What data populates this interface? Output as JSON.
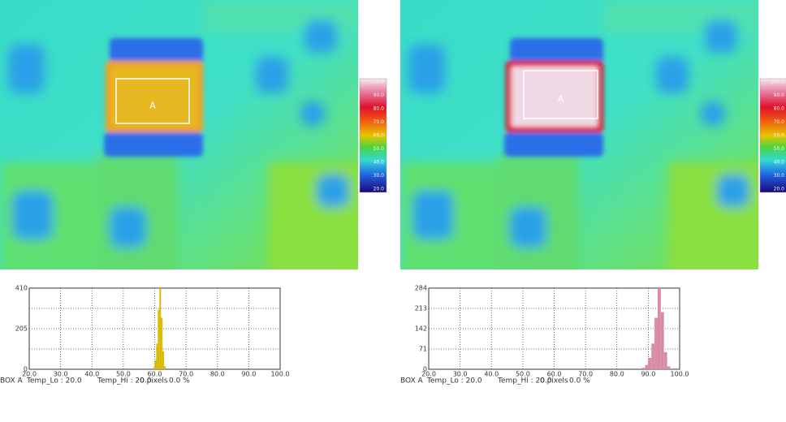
{
  "panels": [
    {
      "box_label": "A",
      "colorbar_labels": [
        "100.0",
        "90.0",
        "80.0",
        "70.0",
        "60.0",
        "50.0",
        "40.0",
        "30.0",
        "20.0"
      ],
      "footer": {
        "box": "BOX A",
        "temp_lo": "Temp_Lo : 20.0",
        "temp_hi": "Temp_Hi : 20.0",
        "pixels": "0 pixels",
        "percent": "0.0 %"
      }
    },
    {
      "box_label": "A",
      "colorbar_labels": [
        "100.0",
        "90.0",
        "80.0",
        "70.0",
        "60.0",
        "50.0",
        "40.0",
        "30.0",
        "20.0"
      ],
      "footer": {
        "box": "BOX A",
        "temp_lo": "Temp_Lo : 20.0",
        "temp_hi": "Temp_Hi : 20.0",
        "pixels": "0 pixels",
        "percent": "0.0 %"
      }
    }
  ],
  "chart_data": [
    {
      "type": "histogram",
      "color": "#d9b800",
      "bins": [
        59.5,
        60,
        60.5,
        61,
        61.5,
        62,
        62.5,
        63,
        63.5
      ],
      "counts": [
        10,
        45,
        130,
        300,
        410,
        260,
        90,
        15
      ],
      "xlim": [
        20,
        100
      ],
      "ylim": [
        0,
        410
      ],
      "grid": true,
      "xticks": [
        {
          "value": 20,
          "label": "20.0"
        },
        {
          "value": 30,
          "label": "30.0"
        },
        {
          "value": 40,
          "label": "40.0"
        },
        {
          "value": 50,
          "label": "50.0"
        },
        {
          "value": 60,
          "label": "60.0"
        },
        {
          "value": 70,
          "label": "70.0"
        },
        {
          "value": 80,
          "label": "80.0"
        },
        {
          "value": 90,
          "label": "90.0"
        },
        {
          "value": 100,
          "label": "100.0"
        }
      ],
      "yticks": [
        0,
        205,
        410
      ],
      "minor_yticks": [
        102.5,
        307.5
      ]
    },
    {
      "type": "histogram",
      "color": "#d98aa5",
      "bins": [
        88,
        89,
        90,
        91,
        92,
        93,
        94,
        95,
        96,
        97
      ],
      "counts": [
        5,
        15,
        40,
        90,
        180,
        284,
        200,
        60,
        10
      ],
      "xlim": [
        20,
        100
      ],
      "ylim": [
        0,
        284
      ],
      "grid": true,
      "xticks": [
        {
          "value": 20,
          "label": "20.0"
        },
        {
          "value": 30,
          "label": "30.0"
        },
        {
          "value": 40,
          "label": "40.0"
        },
        {
          "value": 50,
          "label": "50.0"
        },
        {
          "value": 60,
          "label": "60.0"
        },
        {
          "value": 70,
          "label": "70.0"
        },
        {
          "value": 80,
          "label": "80.0"
        },
        {
          "value": 90,
          "label": "90.0"
        },
        {
          "value": 100,
          "label": "100.0"
        }
      ],
      "yticks": [
        0,
        71,
        142,
        213,
        284
      ],
      "minor_yticks": []
    }
  ]
}
